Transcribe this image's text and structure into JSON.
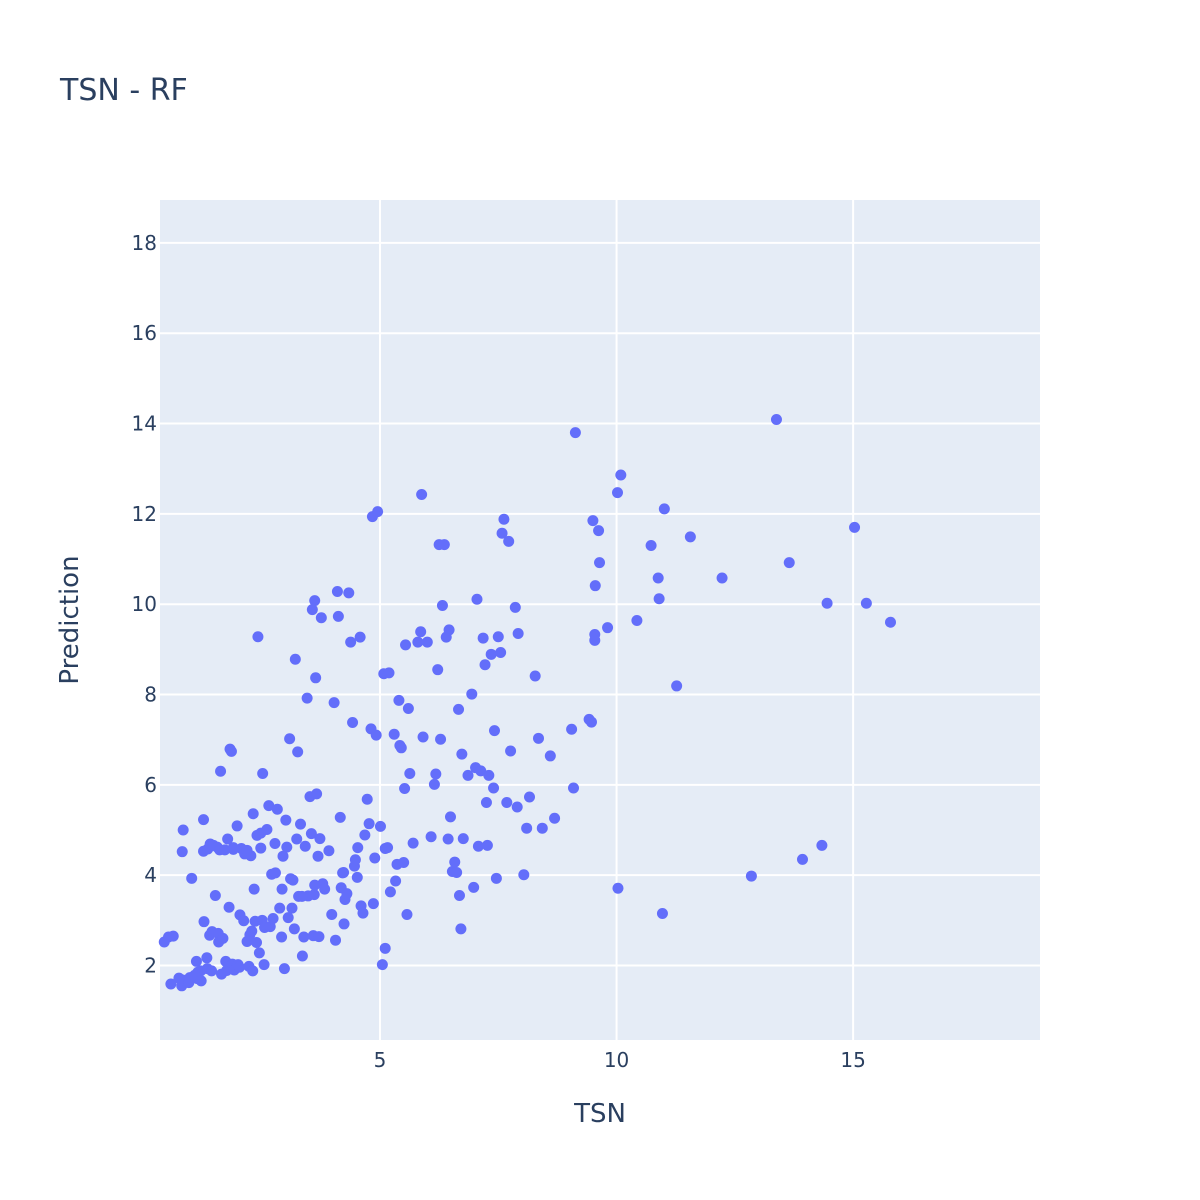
{
  "chart_data": {
    "type": "scatter",
    "title": "TSN - RF",
    "xlabel": "TSN",
    "ylabel": "Prediction",
    "xlim": [
      0.35,
      18.95
    ],
    "ylim": [
      0.35,
      18.95
    ],
    "xticks": [
      5,
      10,
      15
    ],
    "yticks": [
      2,
      4,
      6,
      8,
      10,
      12,
      14,
      16,
      18
    ],
    "grid": true,
    "colors": {
      "background": "#e5ecf6",
      "grid": "#ffffff",
      "marker": "#636efa",
      "text": "#2a3f5f"
    },
    "series": [
      {
        "points": [
          [
            0.44,
            2.52
          ],
          [
            0.53,
            2.63
          ],
          [
            0.63,
            2.65
          ],
          [
            0.58,
            1.59
          ],
          [
            0.84,
            5.0
          ],
          [
            0.82,
            4.52
          ],
          [
            0.81,
            1.55
          ],
          [
            0.82,
            1.68
          ],
          [
            0.96,
            1.62
          ],
          [
            0.98,
            1.73
          ],
          [
            1.02,
            3.93
          ],
          [
            1.12,
            2.09
          ],
          [
            1.15,
            1.85
          ],
          [
            1.14,
            1.71
          ],
          [
            1.21,
            1.88
          ],
          [
            1.27,
            5.23
          ],
          [
            1.27,
            4.53
          ],
          [
            1.28,
            2.97
          ],
          [
            1.34,
            2.17
          ],
          [
            1.35,
            1.93
          ],
          [
            1.36,
            4.58
          ],
          [
            1.4,
            2.67
          ],
          [
            1.41,
            4.69
          ],
          [
            1.44,
            1.88
          ],
          [
            1.45,
            2.75
          ],
          [
            1.48,
            4.66
          ],
          [
            1.52,
            3.55
          ],
          [
            1.56,
            4.62
          ],
          [
            1.58,
            2.71
          ],
          [
            1.59,
            2.52
          ],
          [
            1.61,
            4.56
          ],
          [
            1.63,
            6.3
          ],
          [
            1.65,
            1.81
          ],
          [
            1.68,
            2.6
          ],
          [
            1.72,
            4.56
          ],
          [
            1.74,
            2.09
          ],
          [
            1.76,
            1.89
          ],
          [
            1.78,
            4.8
          ],
          [
            1.81,
            3.29
          ],
          [
            1.83,
            6.79
          ],
          [
            1.86,
            6.74
          ],
          [
            1.88,
            2.03
          ],
          [
            1.9,
            4.61
          ],
          [
            1.92,
            1.9
          ],
          [
            1.98,
            5.09
          ],
          [
            2.0,
            2.02
          ],
          [
            2.03,
            1.96
          ],
          [
            2.04,
            3.12
          ],
          [
            2.07,
            4.59
          ],
          [
            2.12,
            2.99
          ],
          [
            2.14,
            4.47
          ],
          [
            2.19,
            2.53
          ],
          [
            2.23,
            1.98
          ],
          [
            2.25,
            2.68
          ],
          [
            2.27,
            4.43
          ],
          [
            2.29,
            2.76
          ],
          [
            2.32,
            5.36
          ],
          [
            2.34,
            3.69
          ],
          [
            2.36,
            2.98
          ],
          [
            2.39,
            2.51
          ],
          [
            2.4,
            4.88
          ],
          [
            2.42,
            9.28
          ],
          [
            2.45,
            2.28
          ],
          [
            2.48,
            4.93
          ],
          [
            2.51,
            3.0
          ],
          [
            2.52,
            6.25
          ],
          [
            2.56,
            2.84
          ],
          [
            2.61,
            5.01
          ],
          [
            2.65,
            5.54
          ],
          [
            2.68,
            2.86
          ],
          [
            2.71,
            4.02
          ],
          [
            2.74,
            3.04
          ],
          [
            2.78,
            4.7
          ],
          [
            2.83,
            5.46
          ],
          [
            2.88,
            3.27
          ],
          [
            2.92,
            2.63
          ],
          [
            2.93,
            3.69
          ],
          [
            2.95,
            4.42
          ],
          [
            2.98,
            1.93
          ],
          [
            3.01,
            5.22
          ],
          [
            3.03,
            4.62
          ],
          [
            3.06,
            3.06
          ],
          [
            3.09,
            7.02
          ],
          [
            3.11,
            3.92
          ],
          [
            3.14,
            3.27
          ],
          [
            3.19,
            2.81
          ],
          [
            3.21,
            8.78
          ],
          [
            3.24,
            4.8
          ],
          [
            3.26,
            6.73
          ],
          [
            3.28,
            3.53
          ],
          [
            3.32,
            5.13
          ],
          [
            3.36,
            2.21
          ],
          [
            3.39,
            2.63
          ],
          [
            3.42,
            4.64
          ],
          [
            3.46,
            7.92
          ],
          [
            3.48,
            3.54
          ],
          [
            3.52,
            5.74
          ],
          [
            3.55,
            4.92
          ],
          [
            3.57,
            9.88
          ],
          [
            3.59,
            2.66
          ],
          [
            3.62,
            10.08
          ],
          [
            3.64,
            8.37
          ],
          [
            3.66,
            5.8
          ],
          [
            3.69,
            4.42
          ],
          [
            3.71,
            2.64
          ],
          [
            3.73,
            4.81
          ],
          [
            3.76,
            9.7
          ],
          [
            3.79,
            3.81
          ],
          [
            3.83,
            3.69
          ],
          [
            3.92,
            4.54
          ],
          [
            3.98,
            3.13
          ],
          [
            4.03,
            7.82
          ],
          [
            4.06,
            2.56
          ],
          [
            4.1,
            10.28
          ],
          [
            4.12,
            9.73
          ],
          [
            4.16,
            5.28
          ],
          [
            4.18,
            3.72
          ],
          [
            4.21,
            4.05
          ],
          [
            4.24,
            2.92
          ],
          [
            4.26,
            3.46
          ],
          [
            4.3,
            3.59
          ],
          [
            4.34,
            10.25
          ],
          [
            4.38,
            9.16
          ],
          [
            4.42,
            7.38
          ],
          [
            4.46,
            4.2
          ],
          [
            4.48,
            4.34
          ],
          [
            4.53,
            4.61
          ],
          [
            4.58,
            9.27
          ],
          [
            4.6,
            3.32
          ],
          [
            4.64,
            3.16
          ],
          [
            4.68,
            4.89
          ],
          [
            4.73,
            5.68
          ],
          [
            4.77,
            5.14
          ],
          [
            4.81,
            7.24
          ],
          [
            4.84,
            11.94
          ],
          [
            4.86,
            3.37
          ],
          [
            4.89,
            4.38
          ],
          [
            4.92,
            7.1
          ],
          [
            4.95,
            12.05
          ],
          [
            5.01,
            5.08
          ],
          [
            5.05,
            2.02
          ],
          [
            5.08,
            8.46
          ],
          [
            5.11,
            2.38
          ],
          [
            5.16,
            4.61
          ],
          [
            5.19,
            8.48
          ],
          [
            5.22,
            3.63
          ],
          [
            5.3,
            7.12
          ],
          [
            5.33,
            3.87
          ],
          [
            5.36,
            4.24
          ],
          [
            5.4,
            7.87
          ],
          [
            5.42,
            6.87
          ],
          [
            5.45,
            6.82
          ],
          [
            5.5,
            4.28
          ],
          [
            5.52,
            5.92
          ],
          [
            5.54,
            9.1
          ],
          [
            5.57,
            3.13
          ],
          [
            5.6,
            7.69
          ],
          [
            5.63,
            6.25
          ],
          [
            5.7,
            4.71
          ],
          [
            5.8,
            9.16
          ],
          [
            5.86,
            9.39
          ],
          [
            5.88,
            12.43
          ],
          [
            5.91,
            7.06
          ],
          [
            6.0,
            9.16
          ],
          [
            6.08,
            4.85
          ],
          [
            6.15,
            6.01
          ],
          [
            6.18,
            6.24
          ],
          [
            6.22,
            8.55
          ],
          [
            6.25,
            11.32
          ],
          [
            6.28,
            7.01
          ],
          [
            6.32,
            9.97
          ],
          [
            6.36,
            11.32
          ],
          [
            6.4,
            9.27
          ],
          [
            6.44,
            4.8
          ],
          [
            6.46,
            9.43
          ],
          [
            6.49,
            5.29
          ],
          [
            6.53,
            4.08
          ],
          [
            6.58,
            4.29
          ],
          [
            6.62,
            4.06
          ],
          [
            6.66,
            7.67
          ],
          [
            6.68,
            3.55
          ],
          [
            6.71,
            2.81
          ],
          [
            6.73,
            6.68
          ],
          [
            6.76,
            4.81
          ],
          [
            6.86,
            6.21
          ],
          [
            6.94,
            8.01
          ],
          [
            6.98,
            3.73
          ],
          [
            7.02,
            6.38
          ],
          [
            7.05,
            10.11
          ],
          [
            7.08,
            4.64
          ],
          [
            7.13,
            6.31
          ],
          [
            7.18,
            9.25
          ],
          [
            7.22,
            8.66
          ],
          [
            7.25,
            5.61
          ],
          [
            7.27,
            4.66
          ],
          [
            7.3,
            6.21
          ],
          [
            7.35,
            8.89
          ],
          [
            7.4,
            5.93
          ],
          [
            7.42,
            7.2
          ],
          [
            7.46,
            3.93
          ],
          [
            7.5,
            9.28
          ],
          [
            7.55,
            8.93
          ],
          [
            7.58,
            11.57
          ],
          [
            7.62,
            11.88
          ],
          [
            7.68,
            5.61
          ],
          [
            7.72,
            11.39
          ],
          [
            7.76,
            6.75
          ],
          [
            7.86,
            9.93
          ],
          [
            7.9,
            5.51
          ],
          [
            7.92,
            9.35
          ],
          [
            8.04,
            4.01
          ],
          [
            8.1,
            5.04
          ],
          [
            8.16,
            5.73
          ],
          [
            8.28,
            8.41
          ],
          [
            8.35,
            7.03
          ],
          [
            8.43,
            5.04
          ],
          [
            8.6,
            6.64
          ],
          [
            8.69,
            5.26
          ],
          [
            9.05,
            7.23
          ],
          [
            9.09,
            5.93
          ],
          [
            9.13,
            13.8
          ],
          [
            9.42,
            7.45
          ],
          [
            9.47,
            7.39
          ],
          [
            9.5,
            11.85
          ],
          [
            9.54,
            9.33
          ],
          [
            9.54,
            9.2
          ],
          [
            9.55,
            10.41
          ],
          [
            9.62,
            11.63
          ],
          [
            9.64,
            10.92
          ],
          [
            9.81,
            9.48
          ],
          [
            10.02,
            12.47
          ],
          [
            10.03,
            3.71
          ],
          [
            10.09,
            12.86
          ],
          [
            10.43,
            9.64
          ],
          [
            10.73,
            11.3
          ],
          [
            10.88,
            10.58
          ],
          [
            10.9,
            10.12
          ],
          [
            10.97,
            3.15
          ],
          [
            11.01,
            12.11
          ],
          [
            11.27,
            8.19
          ],
          [
            11.56,
            11.49
          ],
          [
            12.23,
            10.58
          ],
          [
            12.85,
            3.98
          ],
          [
            13.38,
            14.09
          ],
          [
            13.65,
            10.92
          ],
          [
            13.93,
            4.35
          ],
          [
            14.34,
            4.66
          ],
          [
            14.45,
            10.02
          ],
          [
            15.03,
            11.7
          ],
          [
            15.28,
            10.02
          ],
          [
            15.79,
            9.6
          ],
          [
            0.75,
            1.72
          ],
          [
            1.08,
            1.78
          ],
          [
            1.22,
            1.66
          ],
          [
            1.9,
            4.57
          ],
          [
            2.31,
            1.88
          ],
          [
            2.55,
            2.02
          ],
          [
            2.79,
            4.05
          ],
          [
            3.35,
            3.53
          ],
          [
            3.61,
            3.57
          ],
          [
            4.23,
            4.06
          ],
          [
            4.52,
            3.95
          ],
          [
            5.11,
            4.59
          ],
          [
            3.16,
            3.89
          ],
          [
            2.48,
            4.6
          ],
          [
            2.19,
            4.55
          ],
          [
            3.62,
            3.78
          ]
        ]
      }
    ]
  }
}
